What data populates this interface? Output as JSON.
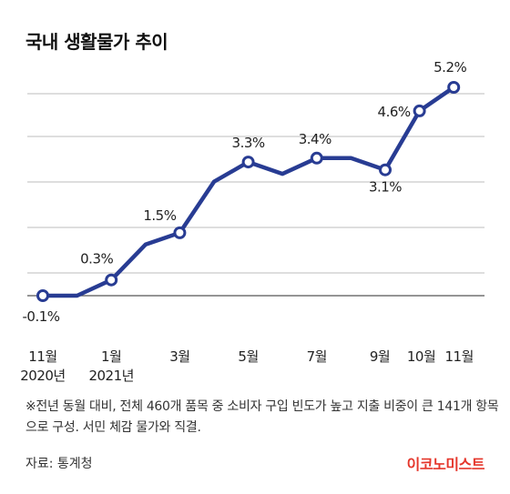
{
  "title": "국내 생활물가 추이",
  "note": "※전년 동월 대비, 전체 460개 품목 중 소비자 구입 빈도가 높고 지출 비중이 큰 141개 항목으로 구성. 서민 체감 물가와 직결.",
  "source": "자료: 통계청",
  "logo": "이코노미스트",
  "colors": {
    "line": "#283c93",
    "logo": "#e5372c",
    "grid": "#bdbdbd",
    "axis": "#555555"
  },
  "chart_data": {
    "type": "line",
    "title": "국내 생활물가 추이",
    "xlabel": "",
    "ylabel": "",
    "ylim": [
      -0.1,
      5.2
    ],
    "grid": true,
    "x": [
      "2020-11",
      "2020-12",
      "2021-01",
      "2021-02",
      "2021-03",
      "2021-04",
      "2021-05",
      "2021-06",
      "2021-07",
      "2021-08",
      "2021-09",
      "2021-10",
      "2021-11"
    ],
    "values": [
      -0.1,
      -0.1,
      0.3,
      1.2,
      1.5,
      2.8,
      3.3,
      3.0,
      3.4,
      3.4,
      3.1,
      4.6,
      5.2
    ],
    "markers": [
      0,
      2,
      4,
      6,
      8,
      10,
      11,
      12
    ],
    "data_labels": [
      {
        "index": 0,
        "text": "-0.1%"
      },
      {
        "index": 2,
        "text": "0.3%"
      },
      {
        "index": 4,
        "text": "1.5%"
      },
      {
        "index": 6,
        "text": "3.3%"
      },
      {
        "index": 8,
        "text": "3.4%"
      },
      {
        "index": 10,
        "text": "3.1%"
      },
      {
        "index": 11,
        "text": "4.6%"
      },
      {
        "index": 12,
        "text": "5.2%"
      }
    ],
    "tick_labels": [
      {
        "index": 0,
        "lines": [
          "11월",
          "2020년"
        ]
      },
      {
        "index": 2,
        "lines": [
          "1월",
          "2021년"
        ]
      },
      {
        "index": 4,
        "lines": [
          "3월"
        ]
      },
      {
        "index": 6,
        "lines": [
          "5월"
        ]
      },
      {
        "index": 8,
        "lines": [
          "7월"
        ]
      },
      {
        "index": 10,
        "lines": [
          "9월"
        ]
      },
      {
        "index": 11,
        "lines": [
          "10월"
        ]
      },
      {
        "index": 12,
        "lines": [
          "11월"
        ]
      }
    ]
  }
}
